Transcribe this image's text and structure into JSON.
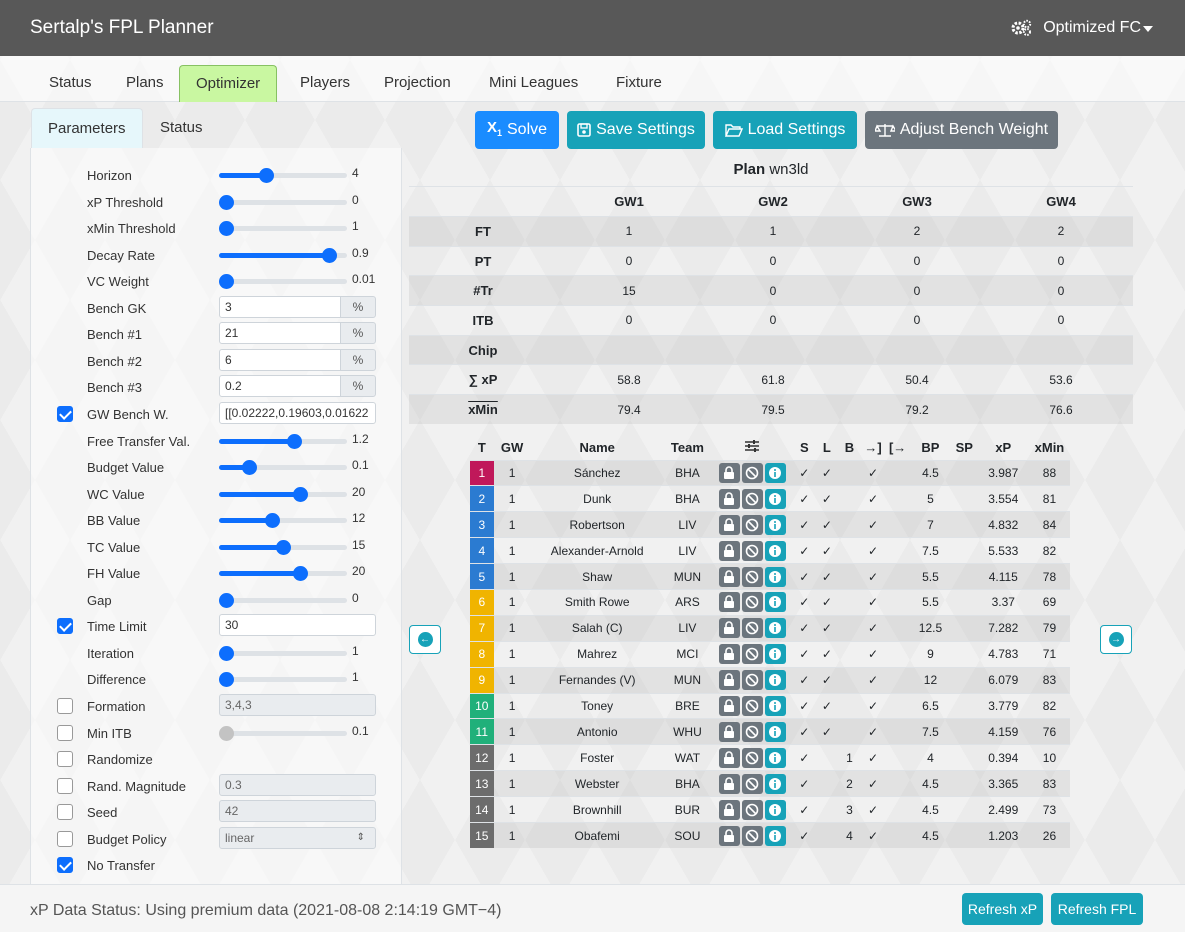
{
  "app": {
    "title": "Sertalp's FPL Planner",
    "team_name": "Optimized FC"
  },
  "nav": {
    "tabs": [
      "Status",
      "Plans",
      "Optimizer",
      "Players",
      "Projection",
      "Mini Leagues",
      "Fixture"
    ],
    "active": "Optimizer"
  },
  "left_tabs": [
    "Parameters",
    "Status"
  ],
  "params": {
    "horizon": {
      "label": "Horizon",
      "value": "4",
      "level": 0.35
    },
    "xp_threshold": {
      "label": "xP Threshold",
      "value": "0",
      "level": 0.0
    },
    "xmin_threshold": {
      "label": "xMin Threshold",
      "value": "1",
      "level": 0.0
    },
    "decay_rate": {
      "label": "Decay Rate",
      "value": "0.9",
      "level": 0.9
    },
    "vc_weight": {
      "label": "VC Weight",
      "value": "0.01",
      "level": 0.0
    },
    "bench_gk": {
      "label": "Bench GK",
      "value": "3",
      "unit": "%"
    },
    "bench_1": {
      "label": "Bench #1",
      "value": "21",
      "unit": "%"
    },
    "bench_2": {
      "label": "Bench #2",
      "value": "6",
      "unit": "%"
    },
    "bench_3": {
      "label": "Bench #3",
      "value": "0.2",
      "unit": "%"
    },
    "gw_bench": {
      "label": "GW Bench W.",
      "value": "[[0.02222,0.19603,0.01622",
      "checked": true
    },
    "free_transfer": {
      "label": "Free Transfer Val.",
      "value": "1.2",
      "level": 0.6
    },
    "budget_value": {
      "label": "Budget Value",
      "value": "0.1",
      "level": 0.2
    },
    "wc_value": {
      "label": "WC Value",
      "value": "20",
      "level": 0.65
    },
    "bb_value": {
      "label": "BB Value",
      "value": "12",
      "level": 0.4
    },
    "tc_value": {
      "label": "TC Value",
      "value": "15",
      "level": 0.5
    },
    "fh_value": {
      "label": "FH Value",
      "value": "20",
      "level": 0.65
    },
    "gap": {
      "label": "Gap",
      "value": "0",
      "level": 0.0
    },
    "time_limit": {
      "label": "Time Limit",
      "value": "30",
      "checked": true
    },
    "iteration": {
      "label": "Iteration",
      "value": "1",
      "level": 0.0
    },
    "difference": {
      "label": "Difference",
      "value": "1",
      "level": 0.0
    },
    "formation": {
      "label": "Formation",
      "value": "3,4,3",
      "checked": false
    },
    "min_itb": {
      "label": "Min ITB",
      "value": "0.1",
      "checked": false,
      "level": 0.0
    },
    "randomize": {
      "label": "Randomize",
      "checked": false
    },
    "rand_magnitude": {
      "label": "Rand. Magnitude",
      "value": "0.3",
      "checked": false
    },
    "seed": {
      "label": "Seed",
      "value": "42",
      "checked": false
    },
    "budget_policy": {
      "label": "Budget Policy",
      "value": "linear",
      "checked": false
    },
    "no_transfer": {
      "label": "No Transfer",
      "checked": true
    }
  },
  "actions": {
    "solve": "Solve",
    "save": "Save Settings",
    "load": "Load Settings",
    "adjust": "Adjust Bench Weight"
  },
  "plan": {
    "label": "Plan",
    "id": "wn3ld",
    "gws": [
      "GW1",
      "GW2",
      "GW3",
      "GW4"
    ],
    "rows": [
      {
        "name": "FT",
        "values": [
          "1",
          "1",
          "2",
          "2"
        ]
      },
      {
        "name": "PT",
        "values": [
          "0",
          "0",
          "0",
          "0"
        ]
      },
      {
        "name": "#Tr",
        "values": [
          "15",
          "0",
          "0",
          "0"
        ]
      },
      {
        "name": "ITB",
        "values": [
          "0",
          "0",
          "0",
          "0"
        ]
      },
      {
        "name": "Chip",
        "values": [
          "",
          "",
          "",
          ""
        ]
      },
      {
        "name": "∑ xP",
        "values": [
          "58.8",
          "61.8",
          "50.4",
          "53.6"
        ]
      },
      {
        "name": "xMin",
        "values": [
          "79.4",
          "79.5",
          "79.2",
          "76.6"
        ]
      }
    ]
  },
  "squad": {
    "headers": [
      "T",
      "GW",
      "Name",
      "Team",
      "",
      "S",
      "L",
      "B",
      "",
      "",
      "BP",
      "SP",
      "xP",
      "xMin"
    ],
    "rows": [
      {
        "t": "1",
        "gw": "1",
        "name": "Sánchez",
        "team": "BHA",
        "s": "✓",
        "l": "✓",
        "b": "",
        "in": "✓",
        "bp": "4.5",
        "sp": "",
        "xp": "3.987",
        "xmin": "88",
        "color": "#c0185a"
      },
      {
        "t": "2",
        "gw": "1",
        "name": "Dunk",
        "team": "BHA",
        "s": "✓",
        "l": "✓",
        "b": "",
        "in": "✓",
        "bp": "5",
        "sp": "",
        "xp": "3.554",
        "xmin": "81",
        "color": "#2b7bd1"
      },
      {
        "t": "3",
        "gw": "1",
        "name": "Robertson",
        "team": "LIV",
        "s": "✓",
        "l": "✓",
        "b": "",
        "in": "✓",
        "bp": "7",
        "sp": "",
        "xp": "4.832",
        "xmin": "84",
        "color": "#2b7bd1"
      },
      {
        "t": "4",
        "gw": "1",
        "name": "Alexander-Arnold",
        "team": "LIV",
        "s": "✓",
        "l": "✓",
        "b": "",
        "in": "✓",
        "bp": "7.5",
        "sp": "",
        "xp": "5.533",
        "xmin": "82",
        "color": "#2b7bd1"
      },
      {
        "t": "5",
        "gw": "1",
        "name": "Shaw",
        "team": "MUN",
        "s": "✓",
        "l": "✓",
        "b": "",
        "in": "✓",
        "bp": "5.5",
        "sp": "",
        "xp": "4.115",
        "xmin": "78",
        "color": "#2b7bd1"
      },
      {
        "t": "6",
        "gw": "1",
        "name": "Smith Rowe",
        "team": "ARS",
        "s": "✓",
        "l": "✓",
        "b": "",
        "in": "✓",
        "bp": "5.5",
        "sp": "",
        "xp": "3.37",
        "xmin": "69",
        "color": "#f0b400"
      },
      {
        "t": "7",
        "gw": "1",
        "name": "Salah (C)",
        "team": "LIV",
        "s": "✓",
        "l": "✓",
        "b": "",
        "in": "✓",
        "bp": "12.5",
        "sp": "",
        "xp": "7.282",
        "xmin": "79",
        "color": "#f0b400"
      },
      {
        "t": "8",
        "gw": "1",
        "name": "Mahrez",
        "team": "MCI",
        "s": "✓",
        "l": "✓",
        "b": "",
        "in": "✓",
        "bp": "9",
        "sp": "",
        "xp": "4.783",
        "xmin": "71",
        "color": "#f0b400"
      },
      {
        "t": "9",
        "gw": "1",
        "name": "Fernandes (V)",
        "team": "MUN",
        "s": "✓",
        "l": "✓",
        "b": "",
        "in": "✓",
        "bp": "12",
        "sp": "",
        "xp": "6.079",
        "xmin": "83",
        "color": "#f0b400"
      },
      {
        "t": "10",
        "gw": "1",
        "name": "Toney",
        "team": "BRE",
        "s": "✓",
        "l": "✓",
        "b": "",
        "in": "✓",
        "bp": "6.5",
        "sp": "",
        "xp": "3.779",
        "xmin": "82",
        "color": "#20b07a"
      },
      {
        "t": "11",
        "gw": "1",
        "name": "Antonio",
        "team": "WHU",
        "s": "✓",
        "l": "✓",
        "b": "",
        "in": "✓",
        "bp": "7.5",
        "sp": "",
        "xp": "4.159",
        "xmin": "76",
        "color": "#20b07a"
      },
      {
        "t": "12",
        "gw": "1",
        "name": "Foster",
        "team": "WAT",
        "s": "✓",
        "l": "",
        "b": "1",
        "in": "✓",
        "bp": "4",
        "sp": "",
        "xp": "0.394",
        "xmin": "10",
        "color": "#6c6c6c"
      },
      {
        "t": "13",
        "gw": "1",
        "name": "Webster",
        "team": "BHA",
        "s": "✓",
        "l": "",
        "b": "2",
        "in": "✓",
        "bp": "4.5",
        "sp": "",
        "xp": "3.365",
        "xmin": "83",
        "color": "#6c6c6c"
      },
      {
        "t": "14",
        "gw": "1",
        "name": "Brownhill",
        "team": "BUR",
        "s": "✓",
        "l": "",
        "b": "3",
        "in": "✓",
        "bp": "4.5",
        "sp": "",
        "xp": "2.499",
        "xmin": "73",
        "color": "#6c6c6c"
      },
      {
        "t": "15",
        "gw": "1",
        "name": "Obafemi",
        "team": "SOU",
        "s": "✓",
        "l": "",
        "b": "4",
        "in": "✓",
        "bp": "4.5",
        "sp": "",
        "xp": "1.203",
        "xmin": "26",
        "color": "#6c6c6c"
      }
    ]
  },
  "footer": {
    "status": "xP Data Status: Using premium data (2021-08-08 2:14:19 GMT−4)",
    "refresh_xp": "Refresh xP",
    "refresh_fpl": "Refresh FPL"
  }
}
